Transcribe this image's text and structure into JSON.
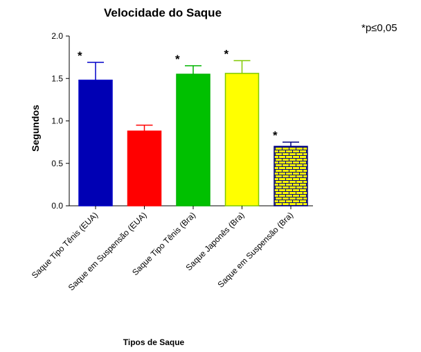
{
  "chart_data": {
    "type": "bar",
    "title": "Velocidade do Saque",
    "xlabel": "Tipos de Saque",
    "ylabel": "Segundos",
    "note": "*p≤0,05",
    "categories": [
      "Saque Tipo Tênis (EUA)",
      "Saque em Suspensão (EUA)",
      "Saque Tipo Tênis (Bra)",
      "Saque Japonês (Bra)",
      "Saque em Suspensão (Bra)"
    ],
    "values": [
      1.48,
      0.88,
      1.55,
      1.56,
      0.7
    ],
    "errors": [
      0.21,
      0.07,
      0.1,
      0.15,
      0.05
    ],
    "markers": [
      "*",
      null,
      "*",
      "*",
      "*"
    ],
    "colors": [
      "#0000b4",
      "#ff0000",
      "#00c000",
      "#ffff00",
      "#ffff00"
    ],
    "edge_colors": [
      "#0000c8",
      "#ff0000",
      "#00b400",
      "#80c800",
      "#000080"
    ],
    "patterns": [
      null,
      null,
      null,
      null,
      "brick"
    ],
    "ylim": [
      0,
      2
    ],
    "yticks": [
      {
        "value": 0,
        "label": "0.0"
      },
      0.5,
      {
        "value": 1,
        "label": "1.0"
      },
      1.5,
      {
        "value": 2,
        "label": "2.0"
      }
    ]
  }
}
